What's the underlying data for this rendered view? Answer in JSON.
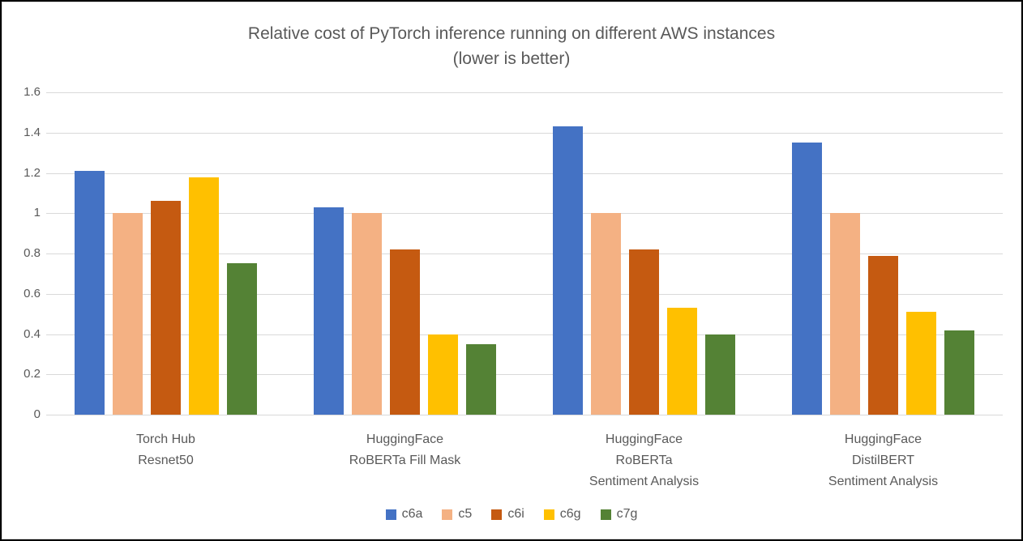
{
  "title": {
    "line1": "Relative cost of PyTorch inference running on different AWS instances",
    "line2": "(lower is better)"
  },
  "chart_data": {
    "type": "bar",
    "title": "Relative cost of PyTorch inference running on different AWS instances (lower is better)",
    "categories": [
      "Torch Hub Resnet50",
      "HuggingFace RoBERTa Fill Mask",
      "HuggingFace RoBERTa Sentiment Analysis",
      "HuggingFace DistilBERT Sentiment Analysis"
    ],
    "category_lines": [
      [
        "Torch Hub",
        "Resnet50"
      ],
      [
        "HuggingFace",
        "RoBERTa Fill Mask"
      ],
      [
        "HuggingFace",
        "RoBERTa",
        "Sentiment Analysis"
      ],
      [
        "HuggingFace",
        "DistilBERT",
        "Sentiment Analysis"
      ]
    ],
    "series": [
      {
        "name": "c6a",
        "color": "#4472C4",
        "values": [
          1.21,
          1.03,
          1.43,
          1.35
        ]
      },
      {
        "name": "c5",
        "color": "#F4B183",
        "values": [
          1.0,
          1.0,
          1.0,
          1.0
        ]
      },
      {
        "name": "c6i",
        "color": "#C55A11",
        "values": [
          1.06,
          0.82,
          0.82,
          0.79
        ]
      },
      {
        "name": "c6g",
        "color": "#FFC000",
        "values": [
          1.18,
          0.4,
          0.53,
          0.51
        ]
      },
      {
        "name": "c7g",
        "color": "#548235",
        "values": [
          0.75,
          0.35,
          0.4,
          0.42
        ]
      }
    ],
    "ylim": [
      0,
      1.6
    ],
    "ytick_values": [
      1.6,
      1.4,
      1.2,
      1.0,
      0.8,
      0.6,
      0.4,
      0.2,
      0
    ],
    "ytick_labels": [
      "1.6",
      "1.4",
      "1.2",
      "1",
      "0.8",
      "0.6",
      "0.4",
      "0.2",
      "0"
    ],
    "xlabel": "",
    "ylabel": "",
    "grid": true,
    "legend_position": "bottom",
    "colors": {
      "grid": "#D9D9D9",
      "text": "#595959",
      "frame": "#000000"
    }
  },
  "legend": {
    "items": [
      {
        "label": "c6a",
        "color": "#4472C4"
      },
      {
        "label": "c5",
        "color": "#F4B183"
      },
      {
        "label": "c6i",
        "color": "#C55A11"
      },
      {
        "label": "c6g",
        "color": "#FFC000"
      },
      {
        "label": "c7g",
        "color": "#548235"
      }
    ]
  }
}
